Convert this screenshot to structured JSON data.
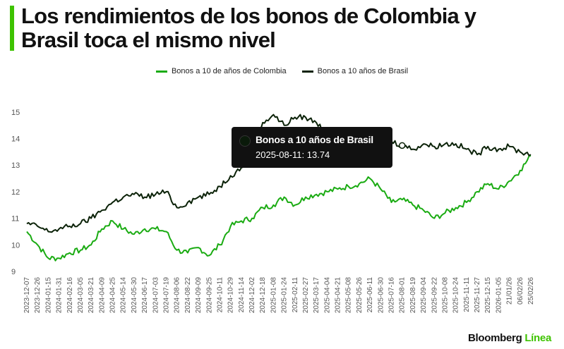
{
  "title": "Los rendimientos de los bonos de Colombia y Brasil toca el mismo nivel",
  "brand": {
    "name": "Bloomberg",
    "accent": "Línea"
  },
  "colors": {
    "colombia": "#1aab12",
    "brasil": "#0b2208",
    "accent": "#3ec300",
    "tooltip_bg": "#111111"
  },
  "tooltip": {
    "series": "Bonos a 10 años de Brasil",
    "value": "2025-08-11: 13.74"
  },
  "chart_data": {
    "type": "line",
    "legend_position": "top-center",
    "grid": false,
    "ylim": [
      9,
      15.5
    ],
    "yticks": [
      9,
      10,
      11,
      12,
      13,
      14,
      15
    ],
    "x_tick_labels": [
      "2023-12-07",
      "2023-12-26",
      "2024-01-15",
      "2024-01-31",
      "2024-02-16",
      "2024-03-05",
      "2024-03-21",
      "2024-04-09",
      "2024-04-25",
      "2024-05-14",
      "2024-05-30",
      "2024-06-17",
      "2024-07-03",
      "2024-07-19",
      "2024-08-06",
      "2024-08-22",
      "2024-09-09",
      "2024-09-25",
      "2024-10-11",
      "2024-10-29",
      "2024-11-14",
      "2024-12-02",
      "2024-12-18",
      "2025-01-08",
      "2025-01-24",
      "2025-02-11",
      "2025-02-27",
      "2025-03-17",
      "2025-04-04",
      "2025-04-21",
      "2025-05-08",
      "2025-05-26",
      "2025-06-11",
      "2025-06-30",
      "2025-07-16",
      "2025-08-01",
      "2025-08-19",
      "2025-09-04",
      "2025-09-22",
      "2025-10-08",
      "2025-10-24",
      "2025-11-11",
      "2025-11-27",
      "2025-12-15",
      "2026-01-05",
      "21/01/26",
      "06/02/26",
      "25/02/26"
    ],
    "series": [
      {
        "name": "Bonos a 10 de años de Colombia",
        "color": "#1aab12",
        "values": [
          10.5,
          10.0,
          9.5,
          9.5,
          9.7,
          9.8,
          10.0,
          10.6,
          10.9,
          10.6,
          10.4,
          10.6,
          10.6,
          10.5,
          9.8,
          9.7,
          9.9,
          9.6,
          10.0,
          10.7,
          10.9,
          11.0,
          11.4,
          11.5,
          11.8,
          11.5,
          11.8,
          11.9,
          12.0,
          12.1,
          12.2,
          12.3,
          12.5,
          12.1,
          11.6,
          11.7,
          11.5,
          11.3,
          11.0,
          11.2,
          11.4,
          11.6,
          12.0,
          12.3,
          12.1,
          12.4,
          12.8,
          13.35
        ]
      },
      {
        "name": "Bonos a 10 años de Brasil",
        "color": "#0b2208",
        "values": [
          10.8,
          10.7,
          10.5,
          10.6,
          10.7,
          10.8,
          11.0,
          11.3,
          11.6,
          11.8,
          11.9,
          11.8,
          11.9,
          12.0,
          11.4,
          11.6,
          11.8,
          11.9,
          12.2,
          12.6,
          12.9,
          13.4,
          14.6,
          14.9,
          14.5,
          14.8,
          14.8,
          14.6,
          14.2,
          14.1,
          14.0,
          13.8,
          13.9,
          13.8,
          13.9,
          13.74,
          13.6,
          13.8,
          13.7,
          13.8,
          13.8,
          13.6,
          13.4,
          13.7,
          13.6,
          13.7,
          13.5,
          13.4
        ]
      }
    ]
  }
}
